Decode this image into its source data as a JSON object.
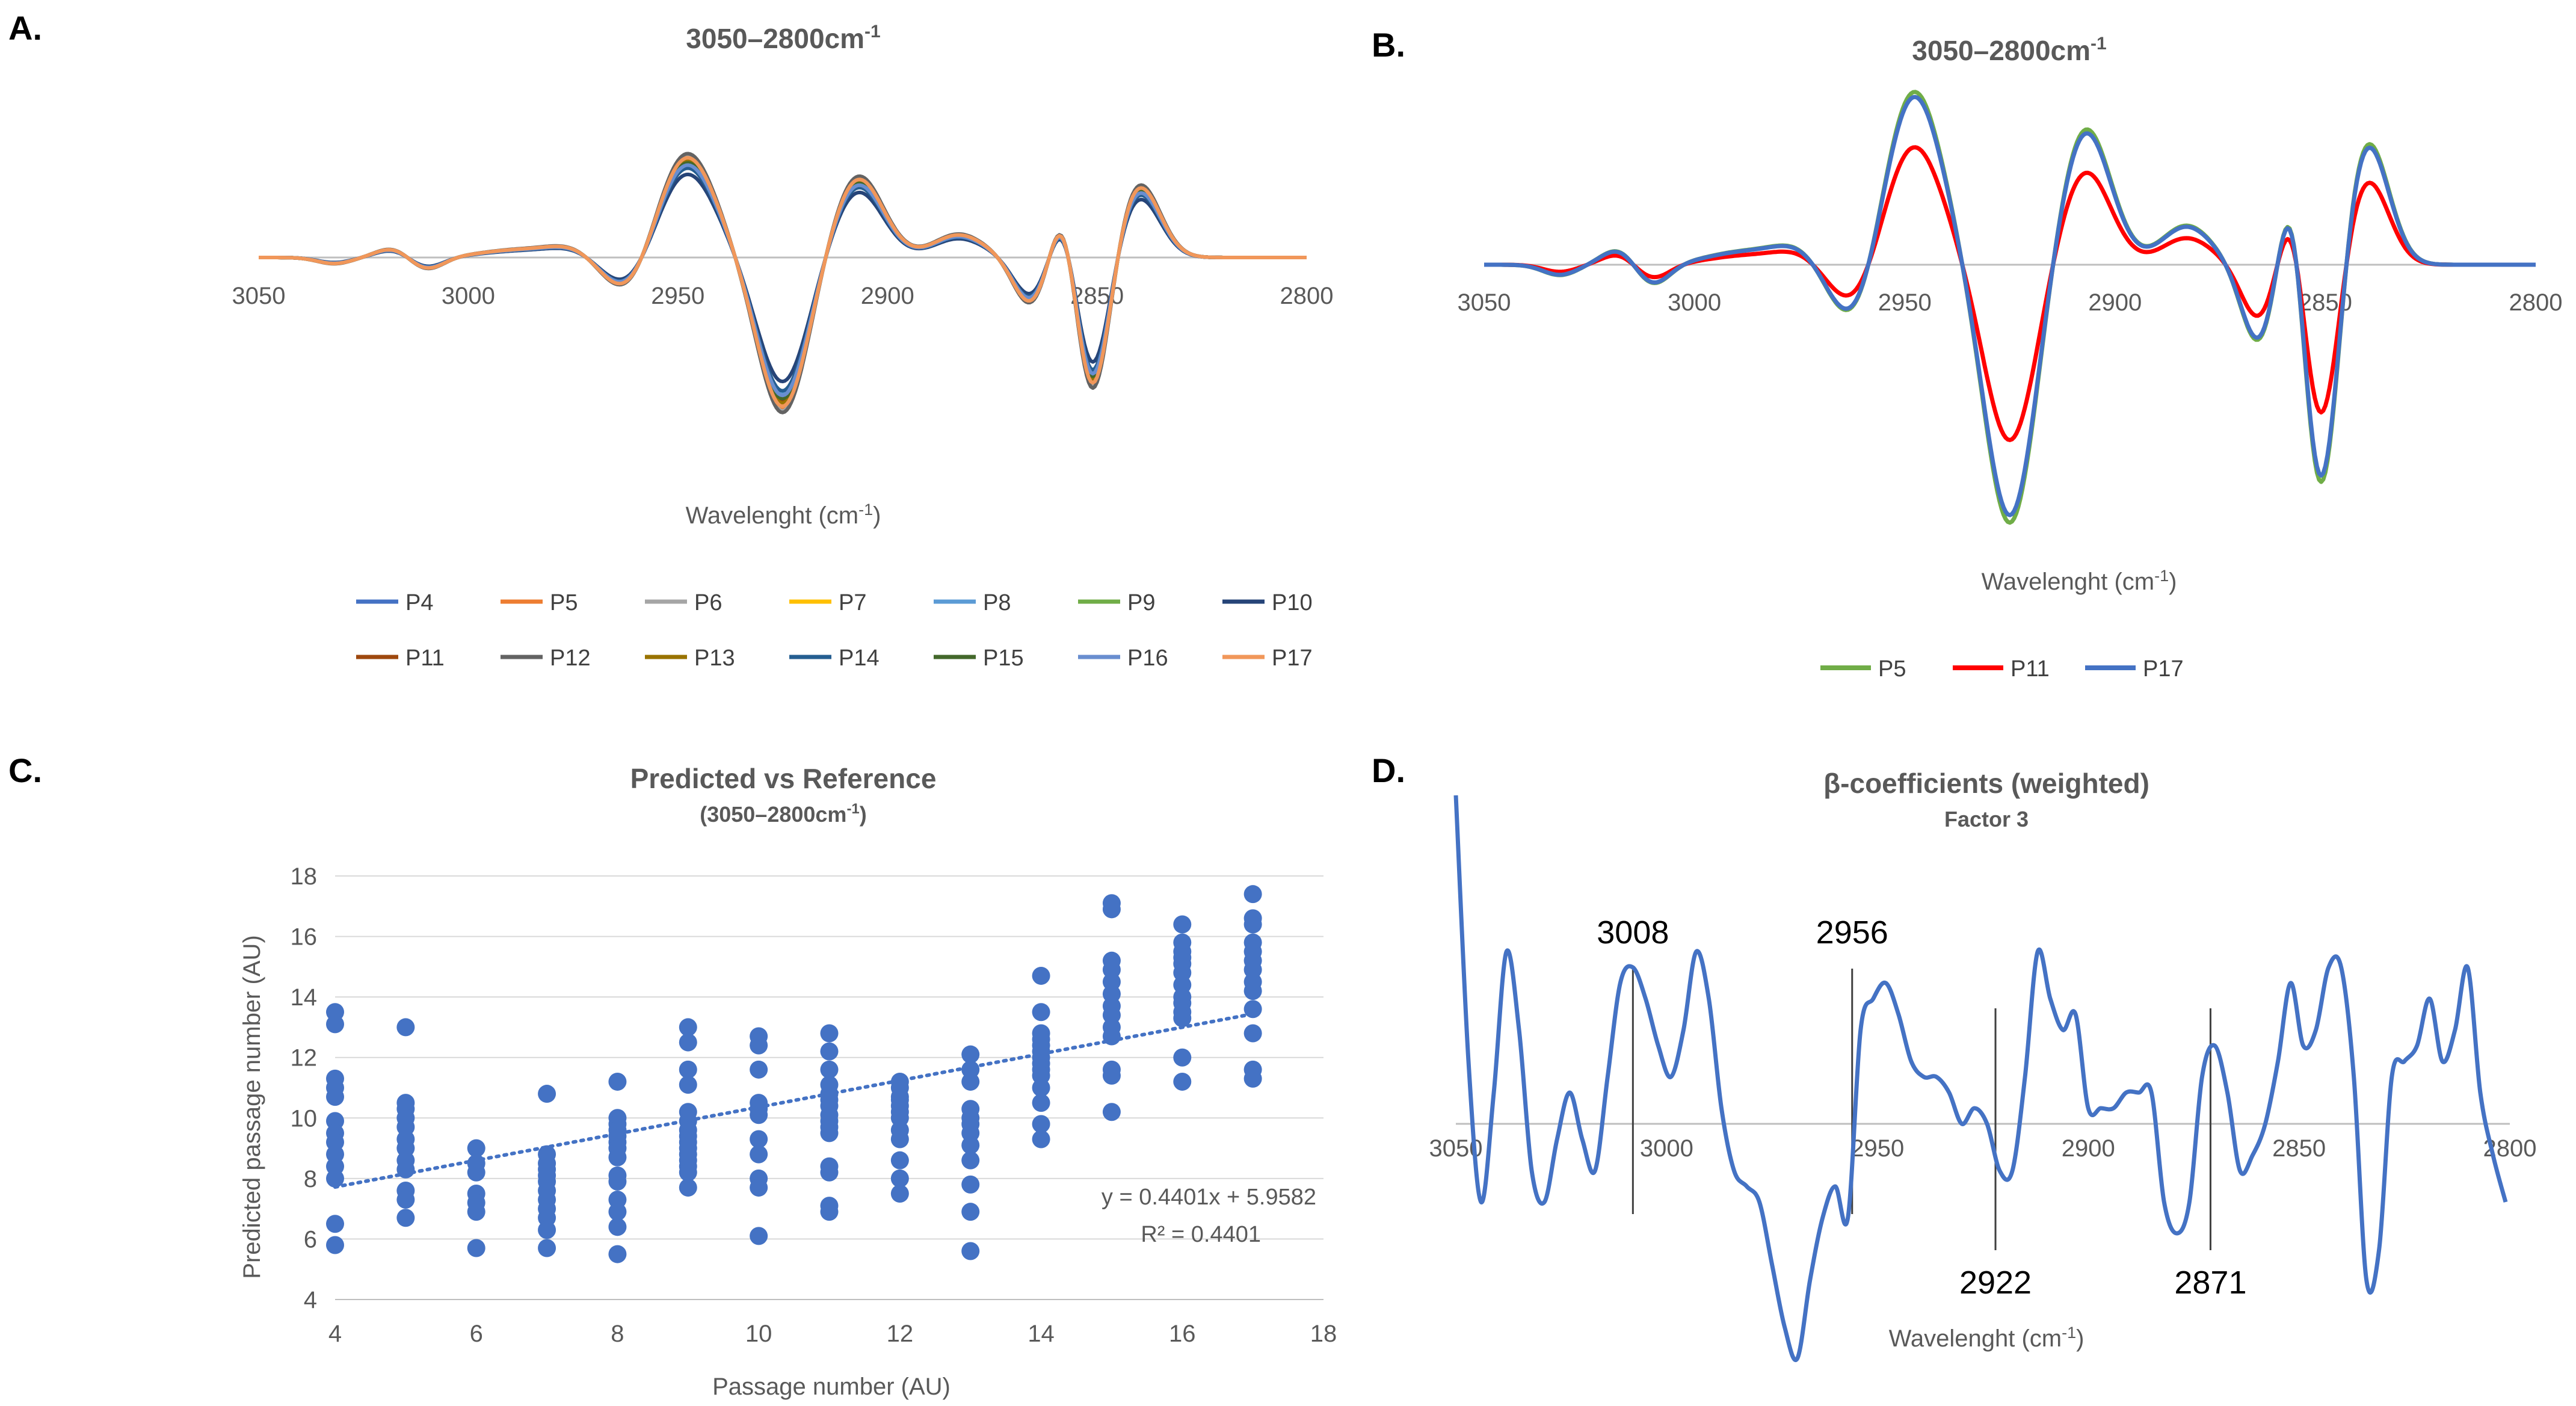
{
  "panels": {
    "A": {
      "label": "A.",
      "title": "3050–2800cm",
      "title_sup": "-1",
      "xlabel_pre": "Wavelenght (cm",
      "xlabel_sup": "-1",
      "xlabel_post": ")"
    },
    "B": {
      "label": "B.",
      "title": "3050–2800cm",
      "title_sup": "-1",
      "xlabel_pre": "Wavelenght (cm",
      "xlabel_sup": "-1",
      "xlabel_post": ")"
    },
    "C": {
      "label": "C.",
      "title": "Predicted vs Reference",
      "subtitle": "(3050–2800cm",
      "subtitle_sup": "-1",
      "subtitle_post": ")",
      "xlabel": "Passage number (AU)",
      "ylabel": "Predicted passage number (AU)",
      "equation": "y = 0.4401x + 5.9582",
      "r2": "R² = 0.4401"
    },
    "D": {
      "label": "D.",
      "title": "β-coefficients (weighted)",
      "subtitle": "Factor 3",
      "xlabel_pre": "Wavelenght (cm",
      "xlabel_sup": "-1",
      "xlabel_post": ")"
    }
  },
  "chart_data": [
    {
      "id": "A",
      "type": "line",
      "x_range": [
        3050,
        2800
      ],
      "x_ticks": [
        "3050",
        "3000",
        "2950",
        "2900",
        "2850",
        "2800"
      ],
      "peaks_x": [
        3025,
        3010,
        2985,
        2975,
        2955,
        2942,
        2920,
        2895,
        2880,
        2860,
        2850,
        2840,
        2825
      ],
      "series": [
        {
          "name": "P4",
          "color": "#4472C4",
          "scale": 0.9
        },
        {
          "name": "P5",
          "color": "#ED7D31",
          "scale": 0.97
        },
        {
          "name": "P6",
          "color": "#A5A5A5",
          "scale": 0.99
        },
        {
          "name": "P7",
          "color": "#FFC000",
          "scale": 0.93
        },
        {
          "name": "P8",
          "color": "#5B9BD5",
          "scale": 0.88
        },
        {
          "name": "P9",
          "color": "#70AD47",
          "scale": 0.95
        },
        {
          "name": "P10",
          "color": "#264478",
          "scale": 0.8
        },
        {
          "name": "P11",
          "color": "#9E480E",
          "scale": 0.92
        },
        {
          "name": "P12",
          "color": "#636363",
          "scale": 1.0
        },
        {
          "name": "P13",
          "color": "#997300",
          "scale": 0.94
        },
        {
          "name": "P14",
          "color": "#255E91",
          "scale": 0.86
        },
        {
          "name": "P15",
          "color": "#43682B",
          "scale": 0.91
        },
        {
          "name": "P16",
          "color": "#698ED0",
          "scale": 0.89
        },
        {
          "name": "P17",
          "color": "#F1975A",
          "scale": 0.96
        }
      ]
    },
    {
      "id": "B",
      "type": "line",
      "x_range": [
        3050,
        2800
      ],
      "x_ticks": [
        "3050",
        "3000",
        "2950",
        "2900",
        "2850",
        "2800"
      ],
      "series": [
        {
          "name": "P5",
          "color": "#70AD47",
          "scale": 1.03
        },
        {
          "name": "P11",
          "color": "#FF0000",
          "scale": 0.7
        },
        {
          "name": "P17",
          "color": "#4472C4",
          "scale": 1.0
        }
      ]
    },
    {
      "id": "C",
      "type": "scatter",
      "x_range": [
        4,
        18
      ],
      "y_range": [
        4,
        18
      ],
      "x_ticks": [
        "4",
        "6",
        "8",
        "10",
        "12",
        "14",
        "16",
        "18"
      ],
      "y_ticks": [
        "4",
        "6",
        "8",
        "10",
        "12",
        "14",
        "16",
        "18"
      ],
      "trendline": {
        "slope": 0.4401,
        "intercept": 5.9582,
        "x_from": 4,
        "x_to": 17
      },
      "points": {
        "x": [
          4,
          4,
          4,
          4,
          4,
          4,
          4,
          4,
          4,
          4,
          4,
          4,
          4,
          5,
          5,
          5,
          5,
          5,
          5,
          5,
          5,
          5,
          5,
          5,
          5,
          6,
          6,
          6,
          6,
          6,
          6,
          6,
          7,
          7,
          7,
          7,
          7,
          7,
          7,
          7,
          7,
          7,
          7,
          7,
          8,
          8,
          8,
          8,
          8,
          8,
          8,
          8,
          8,
          8,
          8,
          8,
          8,
          8,
          9,
          9,
          9,
          9,
          9,
          9,
          9,
          9,
          9,
          9,
          9,
          9,
          9,
          9,
          9,
          10,
          10,
          10,
          10,
          10,
          10,
          10,
          10,
          10,
          10,
          10,
          11,
          11,
          11,
          11,
          11,
          11,
          11,
          11,
          11,
          11,
          11,
          11,
          11,
          11,
          11,
          12,
          12,
          12,
          12,
          12,
          12,
          12,
          12,
          12,
          12,
          12,
          12,
          13,
          13,
          13,
          13,
          13,
          13,
          13,
          13,
          13,
          13,
          13,
          13,
          14,
          14,
          14,
          14,
          14,
          14,
          14,
          14,
          14,
          14,
          14,
          14,
          14,
          14,
          15,
          15,
          15,
          15,
          15,
          15,
          15,
          15,
          15,
          15,
          15,
          15,
          15,
          16,
          16,
          16,
          16,
          16,
          16,
          16,
          16,
          16,
          16,
          16,
          16,
          16,
          17,
          17,
          17,
          17,
          17,
          17,
          17,
          17,
          17,
          17,
          17,
          17,
          17
        ],
        "y": [
          13.5,
          13.1,
          11.3,
          11.0,
          10.7,
          9.9,
          9.5,
          9.2,
          8.8,
          8.4,
          8.0,
          6.5,
          5.8,
          13.0,
          10.5,
          10.3,
          10.0,
          9.7,
          9.3,
          9.0,
          8.6,
          8.3,
          7.6,
          7.3,
          6.7,
          9.0,
          8.5,
          8.2,
          7.5,
          7.2,
          6.9,
          5.7,
          10.8,
          8.8,
          8.5,
          8.3,
          8.1,
          7.9,
          7.6,
          7.3,
          7.0,
          6.7,
          6.3,
          5.7,
          11.2,
          10.0,
          9.8,
          9.6,
          9.4,
          9.2,
          9.0,
          8.7,
          8.1,
          7.9,
          7.3,
          6.9,
          6.4,
          5.5,
          13.0,
          12.5,
          11.6,
          11.1,
          10.2,
          9.9,
          9.6,
          9.4,
          9.2,
          9.0,
          8.8,
          8.6,
          8.4,
          8.2,
          7.7,
          12.7,
          12.4,
          11.6,
          10.5,
          10.3,
          10.1,
          9.3,
          8.8,
          8.0,
          7.7,
          6.1,
          12.8,
          12.2,
          11.6,
          11.1,
          10.8,
          10.6,
          10.4,
          10.1,
          9.9,
          9.7,
          9.5,
          8.4,
          8.2,
          7.1,
          6.9,
          11.2,
          11.0,
          10.7,
          10.6,
          10.4,
          10.2,
          10.0,
          9.6,
          9.3,
          8.6,
          8.0,
          7.5,
          12.1,
          11.6,
          11.2,
          10.3,
          10.0,
          9.8,
          9.5,
          9.1,
          8.6,
          7.8,
          6.9,
          5.6,
          14.7,
          13.5,
          12.8,
          12.6,
          12.4,
          12.2,
          12.0,
          11.8,
          11.6,
          11.4,
          11.0,
          10.5,
          9.8,
          9.3,
          17.1,
          16.9,
          15.2,
          14.9,
          14.5,
          14.1,
          13.7,
          13.4,
          13.0,
          12.7,
          11.6,
          11.4,
          10.2,
          16.4,
          15.8,
          15.5,
          15.3,
          15.1,
          14.8,
          14.4,
          14.0,
          13.8,
          13.5,
          13.3,
          12.0,
          11.2,
          17.4,
          16.6,
          16.4,
          15.8,
          15.5,
          15.2,
          14.9,
          14.5,
          14.2,
          13.6,
          12.8,
          11.6,
          11.3
        ]
      }
    },
    {
      "id": "D",
      "type": "line",
      "x_range": [
        3050,
        2800
      ],
      "x_ticks": [
        "3050",
        "3000",
        "2950",
        "2900",
        "2850",
        "2800"
      ],
      "annotations": [
        {
          "x": 3008,
          "label": "3008",
          "pos": "top"
        },
        {
          "x": 2956,
          "label": "2956",
          "pos": "top"
        },
        {
          "x": 2922,
          "label": "2922",
          "pos": "bottom"
        },
        {
          "x": 2871,
          "label": "2871",
          "pos": "bottom"
        }
      ],
      "series": [
        {
          "name": "Factor 3",
          "color": "#4472C4",
          "x": [
            3050,
            3047,
            3044,
            3041,
            3038,
            3035,
            3032,
            3029,
            3026,
            3023,
            3020,
            3017,
            3014,
            3011,
            3008,
            3005,
            3002,
            2999,
            2996,
            2993,
            2990,
            2987,
            2984,
            2981,
            2978,
            2975,
            2972,
            2969,
            2966,
            2963,
            2960,
            2957,
            2954,
            2951,
            2948,
            2945,
            2942,
            2939,
            2936,
            2933,
            2930,
            2927,
            2924,
            2921,
            2918,
            2915,
            2912,
            2909,
            2906,
            2903,
            2900,
            2897,
            2894,
            2891,
            2888,
            2885,
            2882,
            2879,
            2876,
            2873,
            2870,
            2867,
            2864,
            2861,
            2858,
            2855,
            2852,
            2849,
            2846,
            2843,
            2840,
            2837,
            2834,
            2831,
            2828,
            2825,
            2822,
            2819,
            2816,
            2813,
            2810,
            2807,
            2804,
            2801
          ],
          "y": [
            2.1,
            0.4,
            -0.5,
            0.2,
            1.1,
            0.6,
            -0.3,
            -0.5,
            -0.1,
            0.2,
            -0.1,
            -0.3,
            0.3,
            0.9,
            1.0,
            0.8,
            0.5,
            0.3,
            0.6,
            1.1,
            0.8,
            0.1,
            -0.3,
            -0.4,
            -0.5,
            -0.9,
            -1.3,
            -1.5,
            -1.0,
            -0.6,
            -0.4,
            -0.6,
            0.6,
            0.8,
            0.9,
            0.7,
            0.4,
            0.3,
            0.3,
            0.2,
            0.0,
            0.1,
            0.0,
            -0.3,
            -0.3,
            0.3,
            1.1,
            0.8,
            0.6,
            0.7,
            0.1,
            0.1,
            0.1,
            0.2,
            0.2,
            0.2,
            -0.5,
            -0.7,
            -0.5,
            0.3,
            0.5,
            0.2,
            -0.3,
            -0.2,
            0.0,
            0.4,
            0.9,
            0.5,
            0.6,
            1.0,
            1.0,
            0.3,
            -1.0,
            -0.8,
            0.3,
            0.4,
            0.5,
            0.8,
            0.4,
            0.6,
            1.0,
            0.2,
            -0.2,
            -0.5
          ]
        }
      ]
    }
  ]
}
